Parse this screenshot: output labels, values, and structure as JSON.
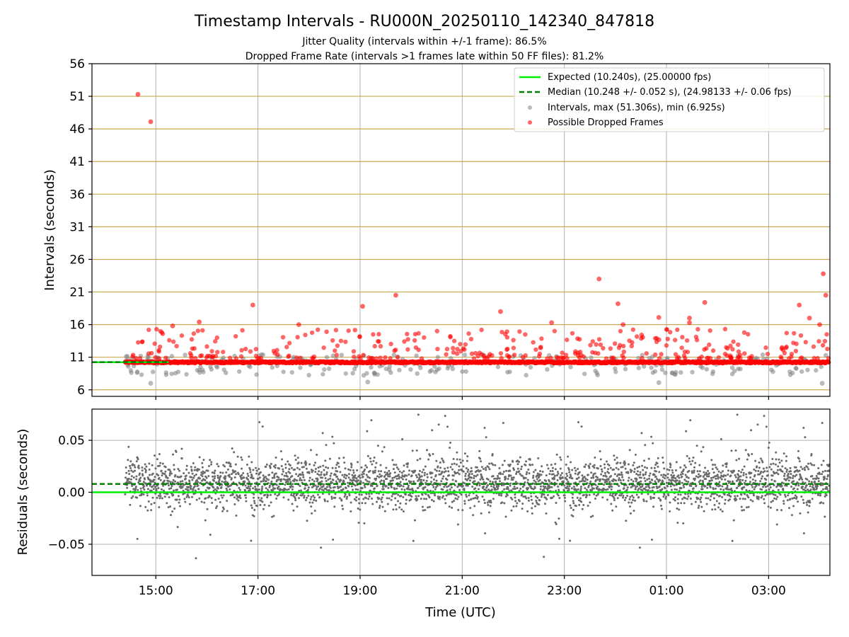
{
  "chart_data": {
    "type": "scatter",
    "title": "Timestamp Intervals - RU000N_20250110_142340_847818",
    "subtitles": [
      "Jitter Quality (intervals within +/-1 frame): 86.5%",
      "Dropped Frame Rate (intervals >1 frames late within 50 FF files): 81.2%"
    ],
    "xlabel": "Time (UTC)",
    "x_ticks": [
      "15:00",
      "17:00",
      "19:00",
      "21:00",
      "23:00",
      "01:00",
      "03:00"
    ],
    "x_range_hours": [
      13.75,
      28.2
    ],
    "data_start_hour": 14.4,
    "colors": {
      "expected": "#00ee00",
      "median": "#008000",
      "intervals": "#808080",
      "dropped": "#ff0000",
      "hline": "#c8a850",
      "grid": "#b0b0b0"
    },
    "top": {
      "ylabel": "Intervals (seconds)",
      "ylim": [
        5,
        56
      ],
      "y_ticks": [
        6,
        11,
        16,
        21,
        26,
        31,
        36,
        41,
        46,
        51,
        56
      ],
      "hlines": [
        6,
        11,
        16,
        21,
        26,
        31,
        36,
        41,
        46,
        51
      ],
      "expected": 10.24,
      "median": 10.248,
      "legend": [
        "Expected (10.240s), (25.00000 fps)",
        "Median (10.248 +/- 0.052 s), (24.98133 +/- 0.06 fps)",
        "Intervals, max (51.306s), min (6.925s)",
        "Possible Dropped Frames"
      ],
      "outliers": [
        {
          "t": 14.65,
          "v": 51.3,
          "type": "dropped"
        },
        {
          "t": 14.9,
          "v": 47.1,
          "type": "dropped"
        },
        {
          "t": 15.33,
          "v": 15.8,
          "type": "dropped"
        },
        {
          "t": 15.85,
          "v": 16.4,
          "type": "dropped"
        },
        {
          "t": 16.9,
          "v": 19.0,
          "type": "dropped"
        },
        {
          "t": 17.8,
          "v": 16.0,
          "type": "dropped"
        },
        {
          "t": 19.05,
          "v": 18.8,
          "type": "dropped"
        },
        {
          "t": 19.7,
          "v": 20.5,
          "type": "dropped"
        },
        {
          "t": 21.75,
          "v": 18.0,
          "type": "dropped"
        },
        {
          "t": 22.75,
          "v": 16.3,
          "type": "dropped"
        },
        {
          "t": 23.68,
          "v": 23.0,
          "type": "dropped"
        },
        {
          "t": 24.05,
          "v": 19.2,
          "type": "dropped"
        },
        {
          "t": 24.15,
          "v": 16.0,
          "type": "dropped"
        },
        {
          "t": 24.85,
          "v": 17.1,
          "type": "dropped"
        },
        {
          "t": 25.45,
          "v": 17.0,
          "type": "dropped"
        },
        {
          "t": 25.45,
          "v": 16.3,
          "type": "dropped"
        },
        {
          "t": 25.75,
          "v": 19.4,
          "type": "dropped"
        },
        {
          "t": 27.6,
          "v": 19.0,
          "type": "dropped"
        },
        {
          "t": 27.8,
          "v": 17.0,
          "type": "dropped"
        },
        {
          "t": 28.0,
          "v": 16.0,
          "type": "dropped"
        },
        {
          "t": 28.07,
          "v": 23.8,
          "type": "dropped"
        },
        {
          "t": 28.12,
          "v": 20.5,
          "type": "dropped"
        },
        {
          "t": 14.9,
          "v": 7.0,
          "type": "interval"
        },
        {
          "t": 19.15,
          "v": 7.2,
          "type": "interval"
        },
        {
          "t": 24.85,
          "v": 7.1,
          "type": "interval"
        },
        {
          "t": 28.05,
          "v": 7.0,
          "type": "interval"
        }
      ]
    },
    "bottom": {
      "ylabel": "Residuals (seconds)",
      "ylim": [
        -0.08,
        0.08
      ],
      "y_ticks": [
        0.05,
        0.0,
        -0.05
      ],
      "y_tick_labels": [
        "0.05",
        "0.00",
        "−0.05"
      ],
      "expected": 0.0,
      "median": 0.008
    }
  }
}
